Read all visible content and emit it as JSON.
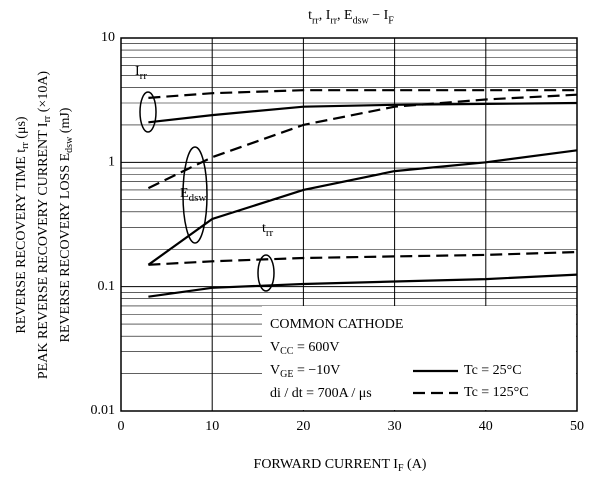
{
  "chart_data": {
    "type": "line",
    "title": [
      {
        "text": "t",
        "sub": "rr"
      },
      {
        "text": ", I",
        "sub": "rr"
      },
      {
        "text": ", E",
        "sub": "dsw"
      },
      {
        "text": "  −  I",
        "sub": "F"
      }
    ],
    "y_label": [
      [
        {
          "text": "REVERSE RECOVERY TIME   t",
          "sub": "rr"
        },
        {
          "text": "  (μs)"
        }
      ],
      [
        {
          "text": "PEAK REVERSE RECOVERY CURRENT   I",
          "sub": "rr"
        },
        {
          "text": "  (×10A)"
        }
      ],
      [
        {
          "text": "REVERSE RECOVERY LOSS   E",
          "sub": "dsw"
        },
        {
          "text": "  (mJ)"
        }
      ]
    ],
    "x_label": [
      {
        "text": "FORWARD CURRENT   I",
        "sub": "F"
      },
      {
        "text": "   (A)"
      }
    ],
    "x": [
      3,
      10,
      20,
      30,
      40,
      50
    ],
    "series": [
      {
        "group": {
          "text": "I",
          "sub": "rr"
        },
        "style": "solid",
        "color": "#000",
        "values": [
          2.1,
          2.4,
          2.8,
          2.9,
          2.95,
          3.0
        ]
      },
      {
        "group": {
          "text": "I",
          "sub": "rr"
        },
        "style": "dashed",
        "color": "#000",
        "values": [
          3.3,
          3.6,
          3.8,
          3.8,
          3.8,
          3.8
        ]
      },
      {
        "group": {
          "text": "E",
          "sub": "dsw"
        },
        "style": "solid",
        "color": "#000",
        "values": [
          0.15,
          0.35,
          0.6,
          0.85,
          1.0,
          1.25
        ]
      },
      {
        "group": {
          "text": "E",
          "sub": "dsw"
        },
        "style": "dashed",
        "color": "#000",
        "values": [
          0.62,
          1.1,
          2.0,
          2.8,
          3.2,
          3.5
        ]
      },
      {
        "group": {
          "text": "t",
          "sub": "rr"
        },
        "style": "solid",
        "color": "#000",
        "values": [
          0.083,
          0.098,
          0.105,
          0.11,
          0.115,
          0.125
        ]
      },
      {
        "group": {
          "text": "t",
          "sub": "rr"
        },
        "style": "dashed",
        "color": "#000",
        "values": [
          0.15,
          0.16,
          0.17,
          0.175,
          0.18,
          0.19
        ]
      }
    ],
    "legend": [
      {
        "label": "Tc = 25°C",
        "style": "solid"
      },
      {
        "label": "Tc = 125°C",
        "style": "dashed"
      }
    ],
    "annotation": [
      [
        {
          "text": "COMMON CATHODE"
        }
      ],
      [
        {
          "text": "V",
          "sub": "CC"
        },
        {
          "text": " = 600V"
        }
      ],
      [
        {
          "text": "V",
          "sub": "GE"
        },
        {
          "text": " = −10V"
        }
      ],
      [
        {
          "text": "di / dt = 700A / μs"
        }
      ]
    ],
    "xlim": [
      0,
      50
    ],
    "xticks": [
      0,
      10,
      20,
      30,
      40,
      50
    ],
    "ylim": [
      0.01,
      10
    ],
    "yticks": [
      0.01,
      0.1,
      1,
      10
    ],
    "ylog": true,
    "grid": true,
    "minor_grid": true
  }
}
